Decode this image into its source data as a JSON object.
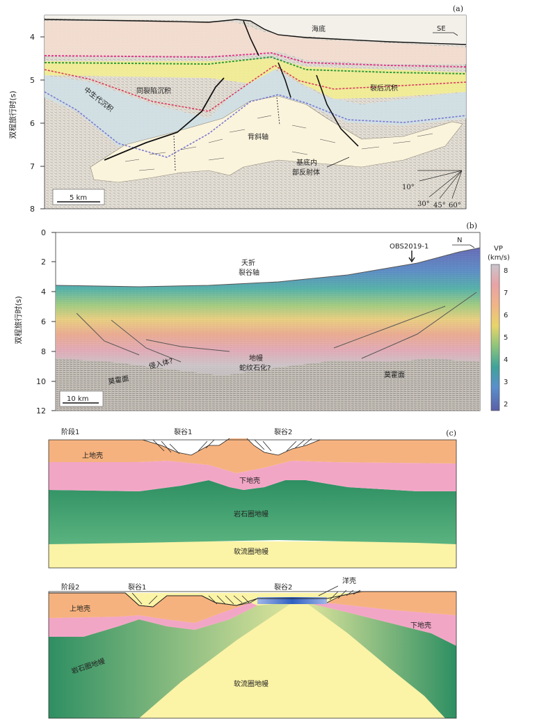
{
  "panel_a": {
    "tag": "(a)",
    "y_axis_title": "双程旅行时(s)",
    "y_ticks": [
      "4",
      "5",
      "6",
      "7",
      "8"
    ],
    "direction": "SE",
    "labels": {
      "seafloor": "海底",
      "syn_rift": "同裂陷沉积",
      "post_rift": "裂后沉积",
      "mesozoic": "中生代沉积",
      "anticline": "背斜轴",
      "basement_reflector_1": "基底内",
      "basement_reflector_2": "部反射体"
    },
    "scale_bar": "5 km",
    "angles": [
      "10°",
      "30°",
      "45°",
      "60°"
    ]
  },
  "panel_b": {
    "tag": "(b)",
    "y_axis_title": "双程旅行时(s)",
    "y_ticks": [
      "0",
      "2",
      "4",
      "6",
      "8",
      "10",
      "12"
    ],
    "direction": "N",
    "obs": "OBS2019-1",
    "labels": {
      "aborted_1": "夭折",
      "aborted_2": "裂谷轴",
      "intrusion": "侵入体?",
      "mantle_1": "地幔",
      "mantle_2": "蛇纹石化?",
      "moho_left": "莫霍面",
      "moho_right": "莫霍面"
    },
    "scale_bar": "10 km",
    "colorbar": {
      "title_1": "VP",
      "title_2": "(km/s)",
      "ticks": [
        "8",
        "7",
        "6",
        "5",
        "4",
        "3",
        "2"
      ]
    }
  },
  "panel_c": {
    "tag": "(c)",
    "stage1": {
      "title": "阶段1",
      "rift1": "裂谷1",
      "rift2": "裂谷2",
      "upper_crust": "上地壳",
      "lower_crust": "下地壳",
      "lith_mantle": "岩石圈地幔",
      "asth_mantle": "软流圈地幔"
    },
    "stage2": {
      "title": "阶段2",
      "rift1": "裂谷1",
      "rift2": "裂谷2",
      "oceanic": "洋壳",
      "upper_crust": "上地壳",
      "lower_crust": "下地壳",
      "lith_mantle": "岩石圈地幔",
      "asth_mantle": "软流圈地幔"
    }
  },
  "colors": {
    "upper_crust": "#f6b27e",
    "lower_crust": "#f2a6c6",
    "lith_mantle": "#2f9a6b",
    "asth_mantle": "#fbf3a6",
    "oceanic": "#3a6fd0"
  }
}
